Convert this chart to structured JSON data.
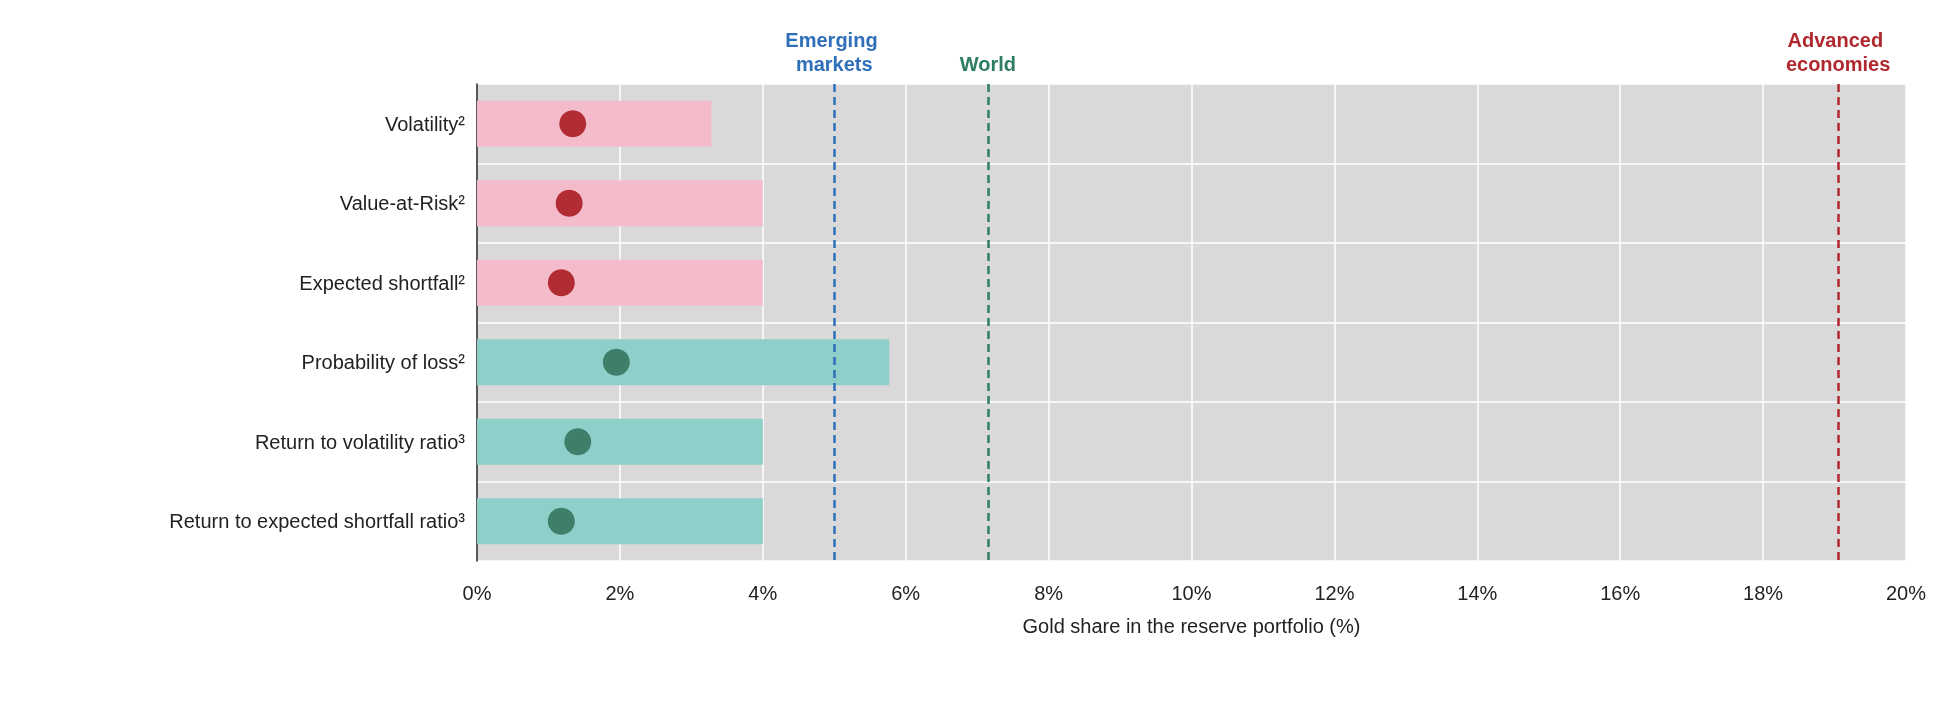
{
  "chart_data": {
    "type": "bar",
    "orientation": "horizontal",
    "xlabel": "Gold share in the reserve portfolio (%)",
    "categories": [
      "Volatility²",
      "Value-at-Risk²",
      "Expected shortfall²",
      "Probability of loss²",
      "Return to volatility ratio³",
      "Return to expected shortfall ratio³"
    ],
    "series": [
      {
        "type": "bar",
        "colors": [
          "#f4bccb",
          "#f4bccb",
          "#f4bccb",
          "#8fcfc9",
          "#8fcfc9",
          "#8fcfc9"
        ],
        "values": [
          3.28,
          4,
          4,
          5.77,
          4,
          4
        ]
      },
      {
        "type": "scatter",
        "colors": [
          "#b22c33",
          "#b22c33",
          "#b22c33",
          "#3f7f6a",
          "#3f7f6a",
          "#3f7f6a"
        ],
        "values": [
          1.34,
          1.29,
          1.18,
          1.95,
          1.41,
          1.18
        ]
      }
    ],
    "xlim": [
      0,
      20
    ],
    "xticks": [
      {
        "value": 0,
        "label": "0%"
      },
      {
        "value": 2,
        "label": "2%"
      },
      {
        "value": 4,
        "label": "4%"
      },
      {
        "value": 6,
        "label": "6%"
      },
      {
        "value": 8,
        "label": "8%"
      },
      {
        "value": 10,
        "label": "10%"
      },
      {
        "value": 12,
        "label": "12%"
      },
      {
        "value": 14,
        "label": "14%"
      },
      {
        "value": 16,
        "label": "16%"
      },
      {
        "value": 18,
        "label": "18%"
      },
      {
        "value": 20,
        "label": "20%"
      }
    ],
    "ref_lines": [
      {
        "axis": "x",
        "value": 5,
        "label": "Emerging markets",
        "color": "#2f6fba",
        "line_style": "dashed"
      },
      {
        "axis": "x",
        "value": 7.15,
        "label": "World",
        "color": "#2e7d62",
        "line_style": "dashed"
      },
      {
        "axis": "x",
        "value": 19.05,
        "label": "Advanced economies",
        "color": "#b0282e",
        "line_style": "dashed"
      }
    ],
    "grid": true,
    "marker": "circle"
  }
}
